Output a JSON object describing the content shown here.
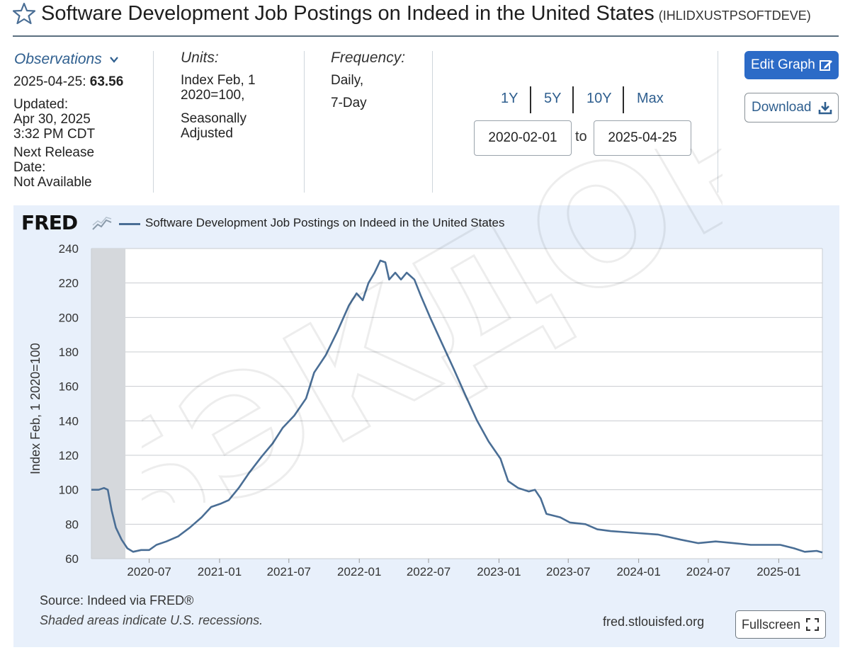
{
  "header": {
    "title": "Software Development Job Postings on Indeed in the United States",
    "series_id": "(IHLIDXUSTPSOFTDEVE)"
  },
  "observations": {
    "label": "Observations",
    "date": "2025-04-25:",
    "value": "63.56",
    "updated_label": "Updated:",
    "updated_date": "Apr 30, 2025",
    "updated_time": "3:32 PM CDT",
    "next_release_label": "Next Release",
    "next_release_label2": "Date:",
    "next_release_value": "Not Available"
  },
  "units": {
    "label": "Units:",
    "line1": "Index Feb, 1",
    "line2": "2020=100,",
    "line3": "Seasonally",
    "line4": "Adjusted"
  },
  "frequency": {
    "label": "Frequency:",
    "line1": "Daily,",
    "line2": "7-Day"
  },
  "range": {
    "buttons": [
      "1Y",
      "5Y",
      "10Y",
      "Max"
    ],
    "start": "2020-02-01",
    "to_label": "to",
    "end": "2025-04-25"
  },
  "actions": {
    "edit_label": "Edit Graph",
    "download_label": "Download",
    "fullscreen_label": "Fullscreen"
  },
  "footer": {
    "source": "Source: Indeed via FRED®",
    "note": "Shaded areas indicate U.S. recessions.",
    "url": "fred.stlouisfed.org"
  },
  "brand": {
    "logo": "FRED",
    "watermark": "БЭКДОР"
  },
  "colors": {
    "series": "#4a6e95",
    "accent": "#2c6bc7",
    "recession": "#d5d8dc",
    "panel": "#e8f0fb"
  },
  "chart_data": {
    "type": "line",
    "title": "Software Development Job Postings on Indeed in the United States",
    "xlabel": "",
    "ylabel": "Index Feb, 1 2020=100",
    "ylim": [
      60,
      240
    ],
    "yticks": [
      60,
      80,
      100,
      120,
      140,
      160,
      180,
      200,
      220,
      240
    ],
    "xlim": [
      "2020-02-01",
      "2025-04-25"
    ],
    "xticks": [
      "2020-07",
      "2021-01",
      "2021-07",
      "2022-01",
      "2022-07",
      "2023-01",
      "2023-07",
      "2024-01",
      "2024-07",
      "2025-01"
    ],
    "grid": true,
    "legend": "top-left",
    "recessions": [
      [
        "2020-02-01",
        "2020-04-30"
      ]
    ],
    "series": [
      {
        "name": "Software Development Job Postings on Indeed in the United States",
        "points": [
          [
            "2020-02-01",
            100
          ],
          [
            "2020-02-20",
            100
          ],
          [
            "2020-03-05",
            101
          ],
          [
            "2020-03-15",
            100
          ],
          [
            "2020-03-25",
            88
          ],
          [
            "2020-04-05",
            78
          ],
          [
            "2020-04-20",
            71
          ],
          [
            "2020-05-05",
            66
          ],
          [
            "2020-05-20",
            64
          ],
          [
            "2020-06-10",
            65
          ],
          [
            "2020-07-01",
            65
          ],
          [
            "2020-07-20",
            68
          ],
          [
            "2020-08-15",
            70
          ],
          [
            "2020-09-15",
            73
          ],
          [
            "2020-10-15",
            78
          ],
          [
            "2020-11-15",
            84
          ],
          [
            "2020-12-10",
            90
          ],
          [
            "2021-01-05",
            92
          ],
          [
            "2021-01-25",
            94
          ],
          [
            "2021-02-20",
            101
          ],
          [
            "2021-03-20",
            110
          ],
          [
            "2021-04-20",
            119
          ],
          [
            "2021-05-20",
            127
          ],
          [
            "2021-06-15",
            136
          ],
          [
            "2021-07-15",
            143
          ],
          [
            "2021-08-15",
            153
          ],
          [
            "2021-09-05",
            168
          ],
          [
            "2021-10-05",
            178
          ],
          [
            "2021-11-05",
            192
          ],
          [
            "2021-12-05",
            207
          ],
          [
            "2021-12-25",
            214
          ],
          [
            "2022-01-10",
            210
          ],
          [
            "2022-01-25",
            220
          ],
          [
            "2022-02-10",
            226
          ],
          [
            "2022-02-25",
            233
          ],
          [
            "2022-03-10",
            232
          ],
          [
            "2022-03-20",
            222
          ],
          [
            "2022-04-05",
            226
          ],
          [
            "2022-04-20",
            222
          ],
          [
            "2022-05-05",
            226
          ],
          [
            "2022-05-25",
            222
          ],
          [
            "2022-06-10",
            213
          ],
          [
            "2022-07-05",
            200
          ],
          [
            "2022-08-05",
            185
          ],
          [
            "2022-09-05",
            170
          ],
          [
            "2022-10-05",
            155
          ],
          [
            "2022-11-05",
            140
          ],
          [
            "2022-12-05",
            128
          ],
          [
            "2023-01-05",
            118
          ],
          [
            "2023-01-25",
            105
          ],
          [
            "2023-02-20",
            101
          ],
          [
            "2023-03-20",
            99
          ],
          [
            "2023-04-05",
            100
          ],
          [
            "2023-04-20",
            95
          ],
          [
            "2023-05-05",
            86
          ],
          [
            "2023-06-10",
            84
          ],
          [
            "2023-07-05",
            81
          ],
          [
            "2023-08-15",
            80
          ],
          [
            "2023-09-15",
            77
          ],
          [
            "2023-10-20",
            76
          ],
          [
            "2023-12-20",
            75
          ],
          [
            "2024-02-20",
            74
          ],
          [
            "2024-04-20",
            71
          ],
          [
            "2024-06-05",
            69
          ],
          [
            "2024-07-20",
            70
          ],
          [
            "2024-09-05",
            69
          ],
          [
            "2024-10-20",
            68
          ],
          [
            "2024-12-05",
            68
          ],
          [
            "2025-01-05",
            68
          ],
          [
            "2025-02-10",
            66
          ],
          [
            "2025-03-10",
            64
          ],
          [
            "2025-04-10",
            64.5
          ],
          [
            "2025-04-25",
            63.56
          ]
        ]
      }
    ]
  }
}
